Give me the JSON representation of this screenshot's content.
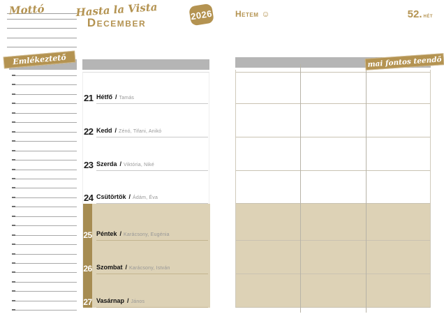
{
  "header": {
    "motto_label": "Mottó",
    "title_script": "Hasta la Vista",
    "title_month": "December",
    "year_badge": "2026",
    "my_week_label": "Hetem",
    "smiley_icon": "☺",
    "week_number": "52.",
    "week_label": "hét"
  },
  "reminder_panel": {
    "ribbon_label": "Emlékeztető",
    "line_count": 26
  },
  "week_panel": {
    "days": [
      {
        "day": "21",
        "name": "Hétfő",
        "namedays": "Tamás",
        "holiday": false
      },
      {
        "day": "22",
        "name": "Kedd",
        "namedays": "Zénó, Tifani, Anikó",
        "holiday": false
      },
      {
        "day": "23",
        "name": "Szerda",
        "namedays": "Viktória, Niké",
        "holiday": false
      },
      {
        "day": "24",
        "name": "Csütörtök",
        "namedays": "Ádám, Éva",
        "holiday": false
      },
      {
        "day": "25",
        "name": "Péntek",
        "namedays": "Karácsony, Eugénia",
        "holiday": true
      },
      {
        "day": "26",
        "name": "Szombat",
        "namedays": "Karácsony, István",
        "holiday": true
      },
      {
        "day": "27",
        "name": "Vasárnap",
        "namedays": "János",
        "holiday": true
      }
    ]
  },
  "todo_panel": {
    "ribbon_label": "mai fontos teendő",
    "columns": 3
  },
  "colors": {
    "gold": "#b49351",
    "gold_dark": "#a68c52",
    "beige": "#ddd2b6",
    "gray_bar": "#b5b5b5"
  }
}
